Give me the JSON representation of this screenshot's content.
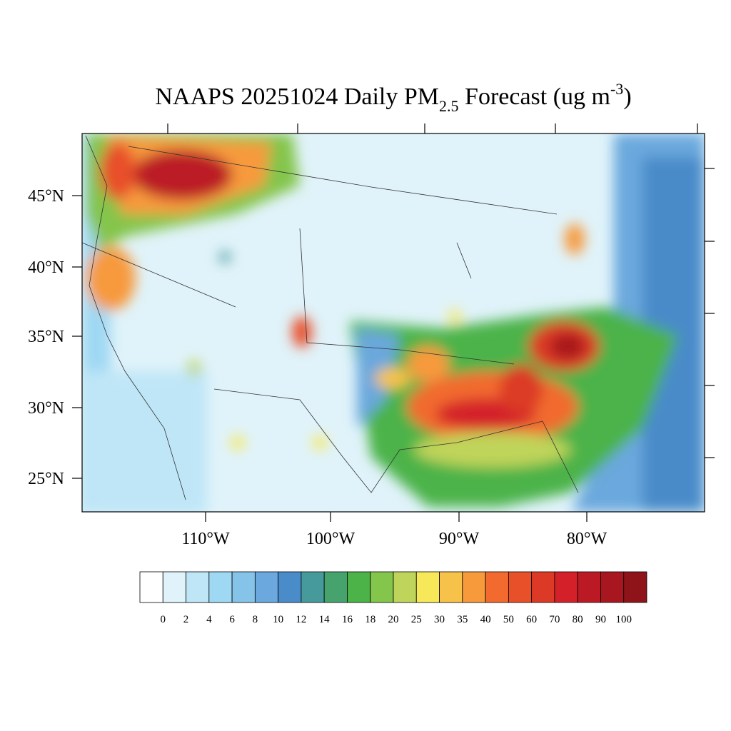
{
  "title": {
    "main": "NAAPS 20251024 Daily PM",
    "sub": "2.5",
    "rest": " Forecast (ug m",
    "sup": "-3",
    "end": ")"
  },
  "lat_labels": [
    "45°N",
    "40°N",
    "35°N",
    "30°N",
    "25°N"
  ],
  "lon_labels": [
    "110°W",
    "100°W",
    "90°W",
    "80°W"
  ],
  "colorbar": {
    "levels": [
      0,
      2,
      4,
      6,
      8,
      10,
      12,
      14,
      16,
      18,
      20,
      25,
      30,
      35,
      40,
      50,
      60,
      70,
      80,
      90,
      100
    ],
    "colors": [
      "#ffffff",
      "#e0f3fa",
      "#bfe6f7",
      "#9fd8f3",
      "#86c3e8",
      "#6aa8dd",
      "#4a8bc9",
      "#479a9c",
      "#46a36e",
      "#4cb348",
      "#84c54c",
      "#bfd45a",
      "#f7e85a",
      "#f7c24a",
      "#f79a3c",
      "#f26a2e",
      "#e8502a",
      "#dc3a26",
      "#d42029",
      "#bb1a25",
      "#a8171f",
      "#8f1419"
    ]
  }
}
